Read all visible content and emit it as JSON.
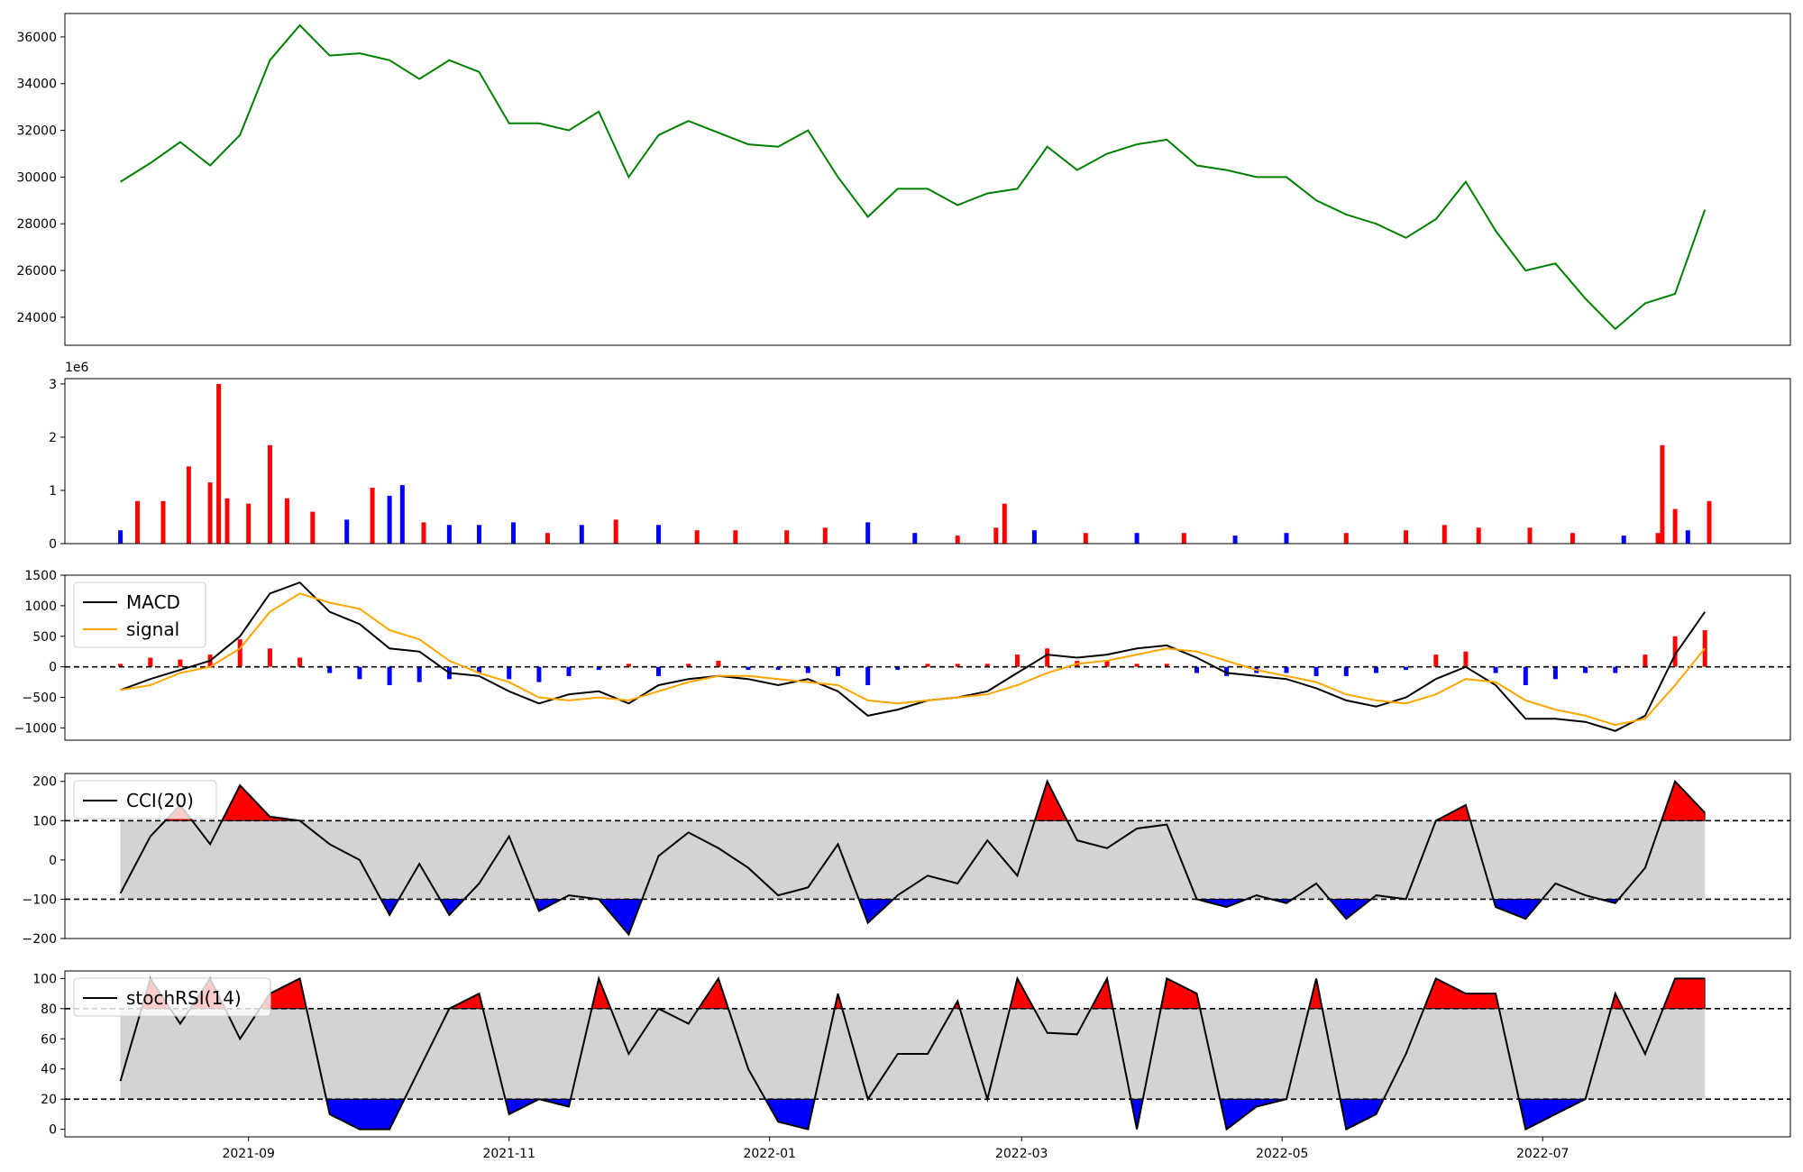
{
  "colors": {
    "price": "#008000",
    "up": "#ff0000",
    "down": "#0000ff",
    "neutral": "#000000",
    "macd": "#000000",
    "signal": "#ffa500",
    "band": "#d3d3d3",
    "frame": "#000000"
  },
  "chart_data": [
    {
      "type": "line",
      "panel": "price",
      "x_dates": [
        "2021-08-02",
        "2021-08-09",
        "2021-08-16",
        "2021-08-23",
        "2021-08-30",
        "2021-09-06",
        "2021-09-13",
        "2021-09-20",
        "2021-09-27",
        "2021-10-04",
        "2021-10-11",
        "2021-10-18",
        "2021-10-25",
        "2021-11-01",
        "2021-11-08",
        "2021-11-15",
        "2021-11-22",
        "2021-11-29",
        "2021-12-06",
        "2021-12-13",
        "2021-12-20",
        "2021-12-27",
        "2022-01-03",
        "2022-01-10",
        "2022-01-17",
        "2022-01-24",
        "2022-01-31",
        "2022-02-07",
        "2022-02-14",
        "2022-02-21",
        "2022-02-28",
        "2022-03-07",
        "2022-03-14",
        "2022-03-21",
        "2022-03-28",
        "2022-04-04",
        "2022-04-11",
        "2022-04-18",
        "2022-04-25",
        "2022-05-02",
        "2022-05-09",
        "2022-05-16",
        "2022-05-23",
        "2022-05-30",
        "2022-06-06",
        "2022-06-13",
        "2022-06-20",
        "2022-06-27",
        "2022-07-04",
        "2022-07-11",
        "2022-07-18",
        "2022-07-25",
        "2022-08-01",
        "2022-08-08"
      ],
      "values": [
        29800,
        30600,
        31500,
        30500,
        31800,
        35000,
        36500,
        35200,
        35300,
        35000,
        34200,
        35000,
        34500,
        32300,
        32300,
        32000,
        32800,
        30000,
        31800,
        32400,
        31900,
        31400,
        31300,
        32000,
        30000,
        28300,
        29500,
        29500,
        28800,
        29300,
        29500,
        31300,
        30300,
        31000,
        31400,
        31600,
        30500,
        30300,
        30000,
        30000,
        29000,
        28400,
        28000,
        27400,
        28200,
        29800,
        27700,
        26000,
        26300,
        24800,
        23500,
        24600,
        25000,
        28600
      ],
      "xlim": [
        "2021-07-20",
        "2022-08-28"
      ],
      "ylim": [
        22800,
        37000
      ],
      "yticks": [
        24000,
        26000,
        28000,
        30000,
        32000,
        34000,
        36000
      ],
      "ytick_labels": [
        "24000",
        "26000",
        "28000",
        "30000",
        "32000",
        "34000",
        "36000"
      ]
    },
    {
      "type": "bar",
      "panel": "volume",
      "x_dates": [
        "2021-08-02",
        "2021-08-06",
        "2021-08-12",
        "2021-08-18",
        "2021-08-23",
        "2021-08-25",
        "2021-08-27",
        "2021-09-01",
        "2021-09-06",
        "2021-09-10",
        "2021-09-16",
        "2021-09-24",
        "2021-09-30",
        "2021-10-04",
        "2021-10-07",
        "2021-10-12",
        "2021-10-18",
        "2021-10-25",
        "2021-11-02",
        "2021-11-10",
        "2021-11-18",
        "2021-11-26",
        "2021-12-06",
        "2021-12-15",
        "2021-12-24",
        "2022-01-05",
        "2022-01-14",
        "2022-01-24",
        "2022-02-04",
        "2022-02-14",
        "2022-02-23",
        "2022-02-25",
        "2022-03-04",
        "2022-03-16",
        "2022-03-28",
        "2022-04-08",
        "2022-04-20",
        "2022-05-02",
        "2022-05-16",
        "2022-05-30",
        "2022-06-08",
        "2022-06-16",
        "2022-06-28",
        "2022-07-08",
        "2022-07-20",
        "2022-07-28",
        "2022-07-29",
        "2022-08-01",
        "2022-08-04",
        "2022-08-09"
      ],
      "values": [
        250000,
        800000,
        800000,
        1450000,
        1150000,
        3000000,
        850000,
        750000,
        1850000,
        850000,
        600000,
        450000,
        1050000,
        900000,
        1100000,
        400000,
        350000,
        350000,
        400000,
        200000,
        350000,
        450000,
        350000,
        250000,
        250000,
        250000,
        300000,
        400000,
        200000,
        150000,
        300000,
        750000,
        250000,
        200000,
        200000,
        200000,
        150000,
        200000,
        200000,
        250000,
        350000,
        300000,
        300000,
        200000,
        150000,
        200000,
        1850000,
        650000,
        250000,
        800000
      ],
      "direction": [
        "down",
        "up",
        "up",
        "up",
        "up",
        "up",
        "up",
        "up",
        "up",
        "up",
        "up",
        "down",
        "up",
        "down",
        "down",
        "up",
        "down",
        "down",
        "down",
        "up",
        "down",
        "up",
        "down",
        "up",
        "up",
        "up",
        "up",
        "down",
        "down",
        "up",
        "up",
        "up",
        "down",
        "up",
        "down",
        "up",
        "down",
        "down",
        "up",
        "up",
        "up",
        "up",
        "up",
        "up",
        "down",
        "up",
        "up",
        "up",
        "down",
        "up"
      ],
      "multiplier_label": "1e6",
      "ylim": [
        0,
        3100000
      ],
      "yticks": [
        0,
        1000000,
        2000000,
        3000000
      ],
      "ytick_labels": [
        "0",
        "1",
        "2",
        "3"
      ]
    },
    {
      "type": "line",
      "panel": "macd",
      "x_dates": [
        "2021-08-02",
        "2021-08-09",
        "2021-08-16",
        "2021-08-23",
        "2021-08-30",
        "2021-09-06",
        "2021-09-13",
        "2021-09-20",
        "2021-09-27",
        "2021-10-04",
        "2021-10-11",
        "2021-10-18",
        "2021-10-25",
        "2021-11-01",
        "2021-11-08",
        "2021-11-15",
        "2021-11-22",
        "2021-11-29",
        "2021-12-06",
        "2021-12-13",
        "2021-12-20",
        "2021-12-27",
        "2022-01-03",
        "2022-01-10",
        "2022-01-17",
        "2022-01-24",
        "2022-01-31",
        "2022-02-07",
        "2022-02-14",
        "2022-02-21",
        "2022-02-28",
        "2022-03-07",
        "2022-03-14",
        "2022-03-21",
        "2022-03-28",
        "2022-04-04",
        "2022-04-11",
        "2022-04-18",
        "2022-04-25",
        "2022-05-02",
        "2022-05-09",
        "2022-05-16",
        "2022-05-23",
        "2022-05-30",
        "2022-06-06",
        "2022-06-13",
        "2022-06-20",
        "2022-06-27",
        "2022-07-04",
        "2022-07-11",
        "2022-07-18",
        "2022-07-25",
        "2022-08-01",
        "2022-08-08"
      ],
      "series": [
        {
          "name": "MACD",
          "values": [
            -380,
            -200,
            -50,
            100,
            500,
            1200,
            1380,
            900,
            700,
            300,
            250,
            -100,
            -150,
            -400,
            -600,
            -450,
            -400,
            -600,
            -300,
            -200,
            -150,
            -200,
            -300,
            -200,
            -400,
            -800,
            -700,
            -550,
            -500,
            -400,
            -100,
            200,
            150,
            200,
            300,
            350,
            150,
            -100,
            -150,
            -200,
            -350,
            -550,
            -650,
            -500,
            -200,
            0,
            -300,
            -850,
            -850,
            -900,
            -1050,
            -800,
            200,
            900
          ]
        },
        {
          "name": "signal",
          "values": [
            -380,
            -300,
            -100,
            0,
            300,
            900,
            1200,
            1050,
            950,
            600,
            450,
            100,
            -100,
            -250,
            -500,
            -550,
            -500,
            -550,
            -400,
            -250,
            -150,
            -150,
            -200,
            -250,
            -300,
            -550,
            -600,
            -550,
            -500,
            -450,
            -300,
            -100,
            50,
            100,
            200,
            300,
            250,
            100,
            -50,
            -150,
            -250,
            -450,
            -550,
            -600,
            -450,
            -200,
            -250,
            -550,
            -700,
            -800,
            -950,
            -850,
            -300,
            300
          ]
        }
      ],
      "histogram": {
        "values": [
          50,
          150,
          120,
          200,
          450,
          300,
          150,
          -100,
          -200,
          -300,
          -250,
          -200,
          -100,
          -200,
          -250,
          -150,
          -50,
          50,
          -150,
          50,
          100,
          -50,
          -50,
          -100,
          -150,
          -300,
          -50,
          50,
          50,
          50,
          200,
          300,
          100,
          100,
          50,
          50,
          -100,
          -150,
          -100,
          -100,
          -150,
          -150,
          -100,
          -50,
          200,
          250,
          -100,
          -300,
          -200,
          -100,
          -100,
          200,
          500,
          600
        ],
        "direction": [
          "up",
          "up",
          "up",
          "up",
          "up",
          "up",
          "up",
          "down",
          "down",
          "down",
          "down",
          "down",
          "down",
          "down",
          "down",
          "down",
          "down",
          "up",
          "down",
          "up",
          "up",
          "down",
          "down",
          "down",
          "down",
          "down",
          "down",
          "up",
          "up",
          "up",
          "up",
          "up",
          "up",
          "up",
          "up",
          "up",
          "down",
          "down",
          "down",
          "down",
          "down",
          "down",
          "down",
          "down",
          "up",
          "up",
          "down",
          "down",
          "down",
          "down",
          "down",
          "up",
          "up",
          "up"
        ]
      },
      "ylim": [
        -1200,
        1500
      ],
      "yticks": [
        -1000,
        -500,
        0,
        500,
        1000,
        1500
      ],
      "ytick_labels": [
        "−1000",
        "−500",
        "0",
        "500",
        "1000",
        "1500"
      ],
      "hline": 0,
      "legend": {
        "entries": [
          "MACD",
          "signal"
        ],
        "placement": "upper left"
      }
    },
    {
      "type": "line",
      "panel": "cci",
      "x_dates": [
        "2021-08-02",
        "2021-08-09",
        "2021-08-16",
        "2021-08-23",
        "2021-08-30",
        "2021-09-06",
        "2021-09-13",
        "2021-09-20",
        "2021-09-27",
        "2021-10-04",
        "2021-10-11",
        "2021-10-18",
        "2021-10-25",
        "2021-11-01",
        "2021-11-08",
        "2021-11-15",
        "2021-11-22",
        "2021-11-29",
        "2021-12-06",
        "2021-12-13",
        "2021-12-20",
        "2021-12-27",
        "2022-01-03",
        "2022-01-10",
        "2022-01-17",
        "2022-01-24",
        "2022-01-31",
        "2022-02-07",
        "2022-02-14",
        "2022-02-21",
        "2022-02-28",
        "2022-03-07",
        "2022-03-14",
        "2022-03-21",
        "2022-03-28",
        "2022-04-04",
        "2022-04-11",
        "2022-04-18",
        "2022-04-25",
        "2022-05-02",
        "2022-05-09",
        "2022-05-16",
        "2022-05-23",
        "2022-05-30",
        "2022-06-06",
        "2022-06-13",
        "2022-06-20",
        "2022-06-27",
        "2022-07-04",
        "2022-07-11",
        "2022-07-18",
        "2022-07-25",
        "2022-08-01",
        "2022-08-08"
      ],
      "series": [
        {
          "name": "CCI(20)",
          "values": [
            -85,
            60,
            140,
            40,
            190,
            110,
            100,
            40,
            0,
            -140,
            -10,
            -140,
            -60,
            60,
            -130,
            -90,
            -100,
            -190,
            10,
            70,
            30,
            -20,
            -90,
            -70,
            40,
            -160,
            -90,
            -40,
            -60,
            50,
            -40,
            200,
            50,
            30,
            80,
            90,
            -100,
            -120,
            -90,
            -110,
            -60,
            -150,
            -90,
            -100,
            100,
            140,
            -120,
            -150,
            -60,
            -90,
            -110,
            -20,
            200,
            120
          ]
        }
      ],
      "ylim": [
        -200,
        220
      ],
      "yticks": [
        -200,
        -100,
        0,
        100,
        200
      ],
      "ytick_labels": [
        "−200",
        "−100",
        "0",
        "100",
        "200"
      ],
      "thresholds": [
        100,
        -100
      ],
      "legend": {
        "entries": [
          "CCI(20)"
        ],
        "placement": "upper left"
      }
    },
    {
      "type": "line",
      "panel": "stochrsi",
      "x_dates": [
        "2021-08-02",
        "2021-08-09",
        "2021-08-16",
        "2021-08-23",
        "2021-08-30",
        "2021-09-06",
        "2021-09-13",
        "2021-09-20",
        "2021-09-27",
        "2021-10-04",
        "2021-10-11",
        "2021-10-18",
        "2021-10-25",
        "2021-11-01",
        "2021-11-08",
        "2021-11-15",
        "2021-11-22",
        "2021-11-29",
        "2021-12-06",
        "2021-12-13",
        "2021-12-20",
        "2021-12-27",
        "2022-01-03",
        "2022-01-10",
        "2022-01-17",
        "2022-01-24",
        "2022-01-31",
        "2022-02-07",
        "2022-02-14",
        "2022-02-21",
        "2022-02-28",
        "2022-03-07",
        "2022-03-14",
        "2022-03-21",
        "2022-03-28",
        "2022-04-04",
        "2022-04-11",
        "2022-04-18",
        "2022-04-25",
        "2022-05-02",
        "2022-05-09",
        "2022-05-16",
        "2022-05-23",
        "2022-05-30",
        "2022-06-06",
        "2022-06-13",
        "2022-06-20",
        "2022-06-27",
        "2022-07-04",
        "2022-07-11",
        "2022-07-18",
        "2022-07-25",
        "2022-08-01",
        "2022-08-08"
      ],
      "series": [
        {
          "name": "stochRSI(14)",
          "values": [
            32,
            100,
            70,
            100,
            60,
            90,
            100,
            10,
            0,
            0,
            40,
            80,
            90,
            10,
            20,
            15,
            100,
            50,
            80,
            70,
            100,
            40,
            5,
            0,
            90,
            20,
            50,
            50,
            85,
            20,
            100,
            64,
            63,
            100,
            0,
            100,
            90,
            0,
            15,
            20,
            100,
            0,
            10,
            50,
            100,
            90,
            90,
            0,
            10,
            20,
            90,
            50,
            100,
            100
          ]
        }
      ],
      "ylim": [
        -5,
        105
      ],
      "yticks": [
        0,
        20,
        40,
        60,
        80,
        100
      ],
      "ytick_labels": [
        "0",
        "20",
        "40",
        "60",
        "80",
        "100"
      ],
      "thresholds": [
        80,
        20
      ],
      "legend": {
        "entries": [
          "stochRSI(14)"
        ],
        "placement": "upper left"
      },
      "xticks": [
        "2021-09-01",
        "2021-11-01",
        "2022-01-01",
        "2022-03-01",
        "2022-05-01",
        "2022-07-01"
      ],
      "xtick_labels": [
        "2021-09",
        "2021-11",
        "2022-01",
        "2022-03",
        "2022-05",
        "2022-07"
      ]
    }
  ]
}
